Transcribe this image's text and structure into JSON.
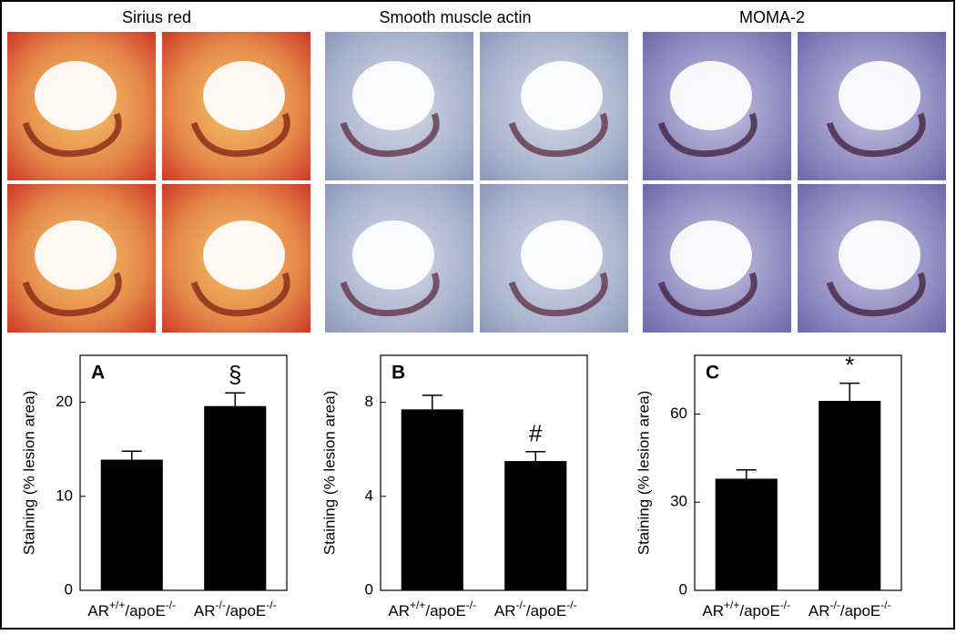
{
  "image_headers": [
    "Sirius red",
    "Smooth muscle actin",
    "MOMA-2"
  ],
  "chart_data": [
    {
      "type": "bar",
      "panel_label": "A",
      "ylabel": "Staining (% lesion area)",
      "categories": [
        "AR+/+/apoE-/-",
        "AR-/-/apoE-/-"
      ],
      "values": [
        13.9,
        19.6
      ],
      "errors": [
        0.9,
        1.4
      ],
      "value_annotations": [
        null,
        "§"
      ],
      "color": "#000000",
      "ylim": [
        0,
        25
      ],
      "yticks": [
        0,
        10,
        20
      ]
    },
    {
      "type": "bar",
      "panel_label": "B",
      "ylabel": "Staining (% lesion area)",
      "categories": [
        "AR+/+/apoE-/-",
        "AR-/-/apoE-/-"
      ],
      "values": [
        7.7,
        5.5
      ],
      "errors": [
        0.6,
        0.4
      ],
      "value_annotations": [
        null,
        "#"
      ],
      "color": "#000000",
      "ylim": [
        0,
        10
      ],
      "yticks": [
        0,
        4,
        8
      ]
    },
    {
      "type": "bar",
      "panel_label": "C",
      "ylabel": "Staining (% lesion area)",
      "categories": [
        "AR+/+/apoE-/-",
        "AR-/-/apoE-/-"
      ],
      "values": [
        38,
        64.5
      ],
      "errors": [
        3,
        6
      ],
      "value_annotations": [
        null,
        "*"
      ],
      "color": "#000000",
      "ylim": [
        0,
        80
      ],
      "yticks": [
        0,
        30,
        60
      ]
    }
  ]
}
